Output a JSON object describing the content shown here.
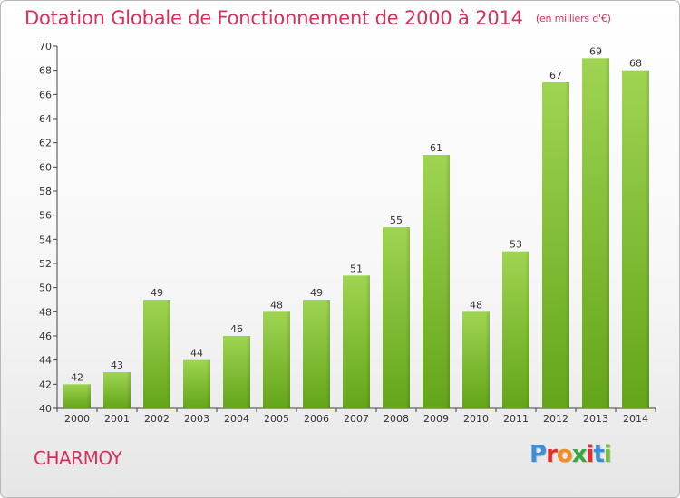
{
  "header": {
    "title": "Dotation Globale de Fonctionnement de 2000 à 2014",
    "subtitle": "(en milliers d'€)"
  },
  "footer": {
    "commune": "CHARMOY",
    "logo_text": "Proxiti"
  },
  "colors": {
    "accent": "#d8305a",
    "bar_top": "#9fd451",
    "bar_bottom": "#63a51a"
  },
  "chart_data": {
    "type": "bar",
    "title": "Dotation Globale de Fonctionnement de 2000 à 2014",
    "subtitle": "(en milliers d'€)",
    "categories": [
      "2000",
      "2001",
      "2002",
      "2003",
      "2004",
      "2005",
      "2006",
      "2007",
      "2008",
      "2009",
      "2010",
      "2011",
      "2012",
      "2013",
      "2014"
    ],
    "values": [
      42,
      43,
      49,
      44,
      46,
      48,
      49,
      51,
      55,
      61,
      48,
      53,
      67,
      69,
      68
    ],
    "ylim": [
      40,
      70
    ],
    "yticks": [
      40,
      42,
      44,
      46,
      48,
      50,
      52,
      54,
      56,
      58,
      60,
      62,
      64,
      66,
      68,
      70
    ],
    "grid": false,
    "legend": "none"
  }
}
